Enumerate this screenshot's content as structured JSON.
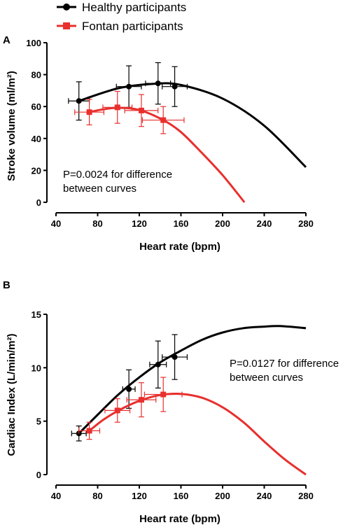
{
  "legend": [
    {
      "label": "Healthy participants",
      "color": "#000000",
      "marker": "circle"
    },
    {
      "label": "Fontan participants",
      "color": "#e8302e",
      "marker": "square"
    }
  ],
  "chart_data": [
    {
      "panel": "A",
      "type": "line",
      "xlabel": "Heart rate (bpm)",
      "ylabel": "Stroke volume (ml/m²)",
      "xlim": [
        40,
        280
      ],
      "ylim": [
        0,
        100
      ],
      "xticks": [
        40,
        80,
        120,
        160,
        200,
        240,
        280
      ],
      "yticks": [
        0,
        20,
        40,
        60,
        80,
        100
      ],
      "annotation": [
        "P=0.0024 for difference",
        "between curves"
      ],
      "series": [
        {
          "name": "Healthy participants",
          "color": "#000000",
          "marker": "circle",
          "points": [
            {
              "x": 62,
              "y": 63.5,
              "xerr": 10,
              "yerr": 12
            },
            {
              "x": 110,
              "y": 72.5,
              "xerr": 12,
              "yerr": 13
            },
            {
              "x": 138,
              "y": 74.5,
              "xerr": 12,
              "yerr": 13
            },
            {
              "x": 154,
              "y": 72.5,
              "xerr": 12,
              "yerr": 12.5
            }
          ],
          "fit_curve": [
            {
              "x": 62,
              "y": 63.5
            },
            {
              "x": 100,
              "y": 71.5
            },
            {
              "x": 135,
              "y": 74.3
            },
            {
              "x": 160,
              "y": 73.5
            },
            {
              "x": 200,
              "y": 65
            },
            {
              "x": 240,
              "y": 48
            },
            {
              "x": 280,
              "y": 22
            }
          ]
        },
        {
          "name": "Fontan participants",
          "color": "#e8302e",
          "marker": "square",
          "points": [
            {
              "x": 72,
              "y": 56.5,
              "xerr": 14,
              "yerr": 8
            },
            {
              "x": 99,
              "y": 59.5,
              "xerr": 14,
              "yerr": 10
            },
            {
              "x": 122,
              "y": 57.5,
              "xerr": 16,
              "yerr": 10
            },
            {
              "x": 143,
              "y": 51.5,
              "xerr": 20,
              "yerr": 8.5
            }
          ],
          "fit_curve": [
            {
              "x": 72,
              "y": 56.5
            },
            {
              "x": 85,
              "y": 58.2
            },
            {
              "x": 100,
              "y": 59.2
            },
            {
              "x": 120,
              "y": 57.8
            },
            {
              "x": 143,
              "y": 51.5
            },
            {
              "x": 160,
              "y": 44
            },
            {
              "x": 180,
              "y": 31
            },
            {
              "x": 200,
              "y": 17
            },
            {
              "x": 221,
              "y": 0
            }
          ]
        }
      ]
    },
    {
      "panel": "B",
      "type": "line",
      "xlabel": "Heart rate (bpm)",
      "ylabel": "Cardiac Index (L/min/m²)",
      "xlim": [
        40,
        280
      ],
      "ylim": [
        0,
        15
      ],
      "xticks": [
        40,
        80,
        120,
        160,
        200,
        240,
        280
      ],
      "yticks": [
        0,
        5,
        10,
        15
      ],
      "annotation": [
        "P=0.0127 for difference",
        "between curves"
      ],
      "series": [
        {
          "name": "Healthy participants",
          "color": "#000000",
          "marker": "circle",
          "points": [
            {
              "x": 62,
              "y": 3.85,
              "xerr": 7,
              "yerr": 0.7
            },
            {
              "x": 110,
              "y": 8.0,
              "xerr": 6,
              "yerr": 1.8
            },
            {
              "x": 138,
              "y": 10.3,
              "xerr": 8,
              "yerr": 2.2
            },
            {
              "x": 154,
              "y": 11.0,
              "xerr": 12,
              "yerr": 2.1
            }
          ],
          "fit_curve": [
            {
              "x": 62,
              "y": 3.85
            },
            {
              "x": 80,
              "y": 5.6
            },
            {
              "x": 100,
              "y": 7.5
            },
            {
              "x": 120,
              "y": 9.1
            },
            {
              "x": 140,
              "y": 10.5
            },
            {
              "x": 160,
              "y": 11.6
            },
            {
              "x": 180,
              "y": 12.6
            },
            {
              "x": 200,
              "y": 13.3
            },
            {
              "x": 220,
              "y": 13.7
            },
            {
              "x": 240,
              "y": 13.85
            },
            {
              "x": 255,
              "y": 13.9
            },
            {
              "x": 280,
              "y": 13.7
            }
          ]
        },
        {
          "name": "Fontan participants",
          "color": "#e8302e",
          "marker": "square",
          "points": [
            {
              "x": 72,
              "y": 4.1,
              "xerr": 10,
              "yerr": 0.8
            },
            {
              "x": 99,
              "y": 6.0,
              "xerr": 12,
              "yerr": 1.1
            },
            {
              "x": 122,
              "y": 7.0,
              "xerr": 14,
              "yerr": 1.6
            },
            {
              "x": 143,
              "y": 7.5,
              "xerr": 18,
              "yerr": 1.6
            }
          ],
          "fit_curve": [
            {
              "x": 72,
              "y": 4.1
            },
            {
              "x": 85,
              "y": 5.1
            },
            {
              "x": 100,
              "y": 6.0
            },
            {
              "x": 120,
              "y": 6.9
            },
            {
              "x": 140,
              "y": 7.45
            },
            {
              "x": 160,
              "y": 7.55
            },
            {
              "x": 180,
              "y": 7.2
            },
            {
              "x": 200,
              "y": 6.3
            },
            {
              "x": 220,
              "y": 4.9
            },
            {
              "x": 240,
              "y": 3.1
            },
            {
              "x": 260,
              "y": 1.4
            },
            {
              "x": 280,
              "y": 0
            }
          ]
        }
      ]
    }
  ]
}
